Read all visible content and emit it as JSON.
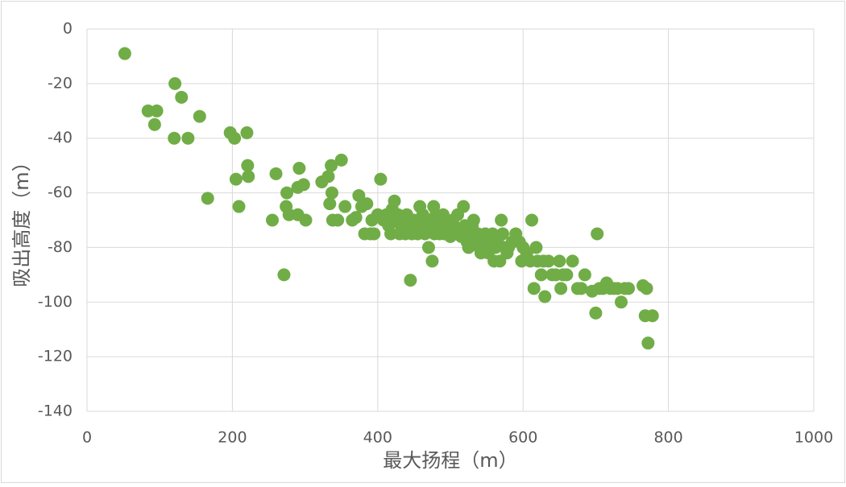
{
  "chart_data": {
    "type": "scatter",
    "x_label": "最大扬程（m）",
    "y_label": "吸出高度（m）",
    "xlim": [
      0,
      1000
    ],
    "xticks": [
      0,
      200,
      400,
      600,
      800,
      1000
    ],
    "ylim": [
      -140,
      0
    ],
    "yticks": [
      -140,
      -120,
      -100,
      -80,
      -60,
      -40,
      -20,
      0
    ],
    "grid": true,
    "color": "#70ad47",
    "x": [
      52,
      84,
      96,
      93,
      121,
      130,
      120,
      139,
      155,
      166,
      197,
      203,
      220,
      205,
      221,
      222,
      209,
      255,
      260,
      271,
      275,
      274,
      278,
      290,
      292,
      290,
      298,
      301,
      323,
      332,
      336,
      334,
      337,
      338,
      345,
      350,
      355,
      365,
      370,
      374,
      378,
      382,
      385,
      390,
      392,
      395,
      400,
      404,
      408,
      412,
      415,
      418,
      420,
      423,
      425,
      428,
      430,
      432,
      435,
      438,
      440,
      442,
      445,
      447,
      450,
      452,
      455,
      458,
      460,
      462,
      465,
      468,
      470,
      472,
      475,
      477,
      478,
      480,
      482,
      485,
      488,
      490,
      492,
      495,
      498,
      500,
      503,
      505,
      508,
      510,
      512,
      515,
      518,
      520,
      523,
      525,
      528,
      530,
      532,
      535,
      538,
      540,
      542,
      545,
      548,
      550,
      552,
      555,
      558,
      560,
      562,
      565,
      568,
      570,
      572,
      575,
      578,
      580,
      585,
      590,
      595,
      598,
      600,
      605,
      610,
      612,
      615,
      618,
      620,
      625,
      628,
      630,
      635,
      640,
      645,
      650,
      652,
      655,
      660,
      668,
      675,
      680,
      685,
      695,
      700,
      702,
      705,
      710,
      715,
      720,
      725,
      730,
      735,
      740,
      745,
      765,
      768,
      770,
      772,
      778
    ],
    "y": [
      -9,
      -30,
      -30,
      -35,
      -20,
      -25,
      -40,
      -40,
      -32,
      -62,
      -38,
      -40,
      -38,
      -55,
      -50,
      -54,
      -65,
      -70,
      -53,
      -90,
      -60,
      -65,
      -68,
      -58,
      -51,
      -68,
      -57,
      -70,
      -56,
      -54,
      -50,
      -64,
      -60,
      -70,
      -70,
      -48,
      -65,
      -70,
      -69,
      -61,
      -65,
      -75,
      -64,
      -75,
      -70,
      -75,
      -68,
      -55,
      -70,
      -68,
      -72,
      -75,
      -66,
      -63,
      -70,
      -68,
      -75,
      -72,
      -70,
      -75,
      -68,
      -72,
      -92,
      -75,
      -70,
      -73,
      -75,
      -65,
      -70,
      -68,
      -75,
      -72,
      -80,
      -70,
      -85,
      -65,
      -75,
      -68,
      -72,
      -75,
      -70,
      -68,
      -75,
      -72,
      -75,
      -76,
      -70,
      -72,
      -75,
      -68,
      -74,
      -76,
      -65,
      -72,
      -78,
      -80,
      -75,
      -72,
      -70,
      -78,
      -75,
      -80,
      -82,
      -78,
      -75,
      -80,
      -82,
      -78,
      -75,
      -85,
      -80,
      -78,
      -85,
      -70,
      -75,
      -80,
      -82,
      -80,
      -78,
      -75,
      -78,
      -85,
      -80,
      -82,
      -85,
      -70,
      -95,
      -80,
      -85,
      -90,
      -85,
      -98,
      -85,
      -90,
      -90,
      -85,
      -95,
      -90,
      -90,
      -85,
      -95,
      -95,
      -90,
      -96,
      -104,
      -75,
      -95,
      -95,
      -93,
      -95,
      -95,
      -95,
      -100,
      -95,
      -95,
      -94,
      -105,
      -95,
      -115,
      -105
    ]
  }
}
